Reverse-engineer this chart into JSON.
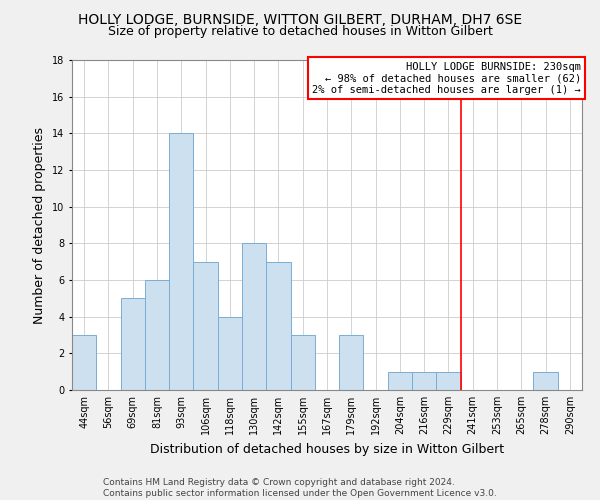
{
  "title": "HOLLY LODGE, BURNSIDE, WITTON GILBERT, DURHAM, DH7 6SE",
  "subtitle": "Size of property relative to detached houses in Witton Gilbert",
  "xlabel": "Distribution of detached houses by size in Witton Gilbert",
  "ylabel": "Number of detached properties",
  "footer_line1": "Contains HM Land Registry data © Crown copyright and database right 2024.",
  "footer_line2": "Contains public sector information licensed under the Open Government Licence v3.0.",
  "bin_labels": [
    "44sqm",
    "56sqm",
    "69sqm",
    "81sqm",
    "93sqm",
    "106sqm",
    "118sqm",
    "130sqm",
    "142sqm",
    "155sqm",
    "167sqm",
    "179sqm",
    "192sqm",
    "204sqm",
    "216sqm",
    "229sqm",
    "241sqm",
    "253sqm",
    "265sqm",
    "278sqm",
    "290sqm"
  ],
  "bar_heights": [
    3,
    0,
    5,
    6,
    14,
    7,
    4,
    8,
    7,
    3,
    0,
    3,
    0,
    1,
    1,
    1,
    0,
    0,
    0,
    1,
    0
  ],
  "bar_color": "#cde0f0",
  "bar_edgecolor": "#7aadd4",
  "reference_line_x_label": "229sqm",
  "reference_line_color": "red",
  "annotation_title": "HOLLY LODGE BURNSIDE: 230sqm",
  "annotation_line1": "← 98% of detached houses are smaller (62)",
  "annotation_line2": "2% of semi-detached houses are larger (1) →",
  "annotation_box_edgecolor": "red",
  "annotation_box_facecolor": "white",
  "ylim": [
    0,
    18
  ],
  "yticks": [
    0,
    2,
    4,
    6,
    8,
    10,
    12,
    14,
    16,
    18
  ],
  "background_color": "#f0f0f0",
  "plot_background_color": "#ffffff",
  "title_fontsize": 10,
  "subtitle_fontsize": 9,
  "axis_label_fontsize": 9,
  "tick_fontsize": 7,
  "footer_fontsize": 6.5,
  "annotation_fontsize": 7.5
}
